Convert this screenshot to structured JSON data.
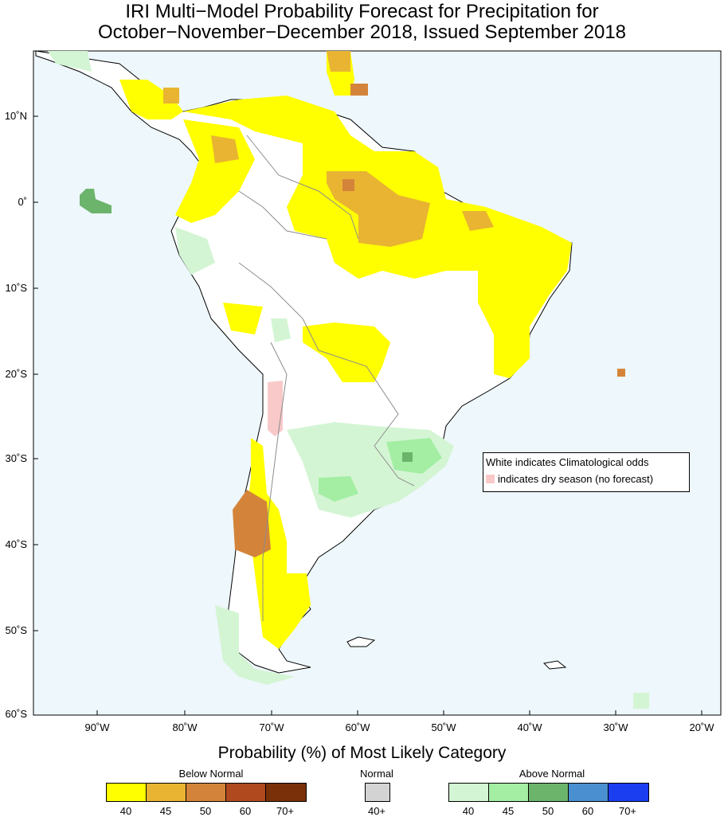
{
  "header": {
    "title_line1": "IRI Multi−Model Probability Forecast for Precipitation for",
    "title_line2": "October−November−December 2018, Issued September 2018"
  },
  "axes": {
    "lat_labels": [
      "10˚N",
      "0˚",
      "10˚S",
      "20˚S",
      "30˚S",
      "40˚S",
      "50˚S",
      "60˚S"
    ],
    "lon_labels": [
      "90˚W",
      "80˚W",
      "70˚W",
      "60˚W",
      "50˚W",
      "40˚W",
      "30˚W",
      "20˚W"
    ]
  },
  "legend_box": {
    "line1": "White indicates Climatological odds",
    "line2": "indicates dry season (no forecast)"
  },
  "scale": {
    "title": "Probability (%) of Most Likely Category",
    "below_label": "Below Normal",
    "normal_label": "Normal",
    "above_label": "Above Normal",
    "below_ticks": [
      "40",
      "45",
      "50",
      "60",
      "70+"
    ],
    "normal_ticks": [
      "40+"
    ],
    "above_ticks": [
      "40",
      "45",
      "50",
      "60",
      "70+"
    ]
  },
  "colors": {
    "ocean": "#eef7fb",
    "land": "#ffffff",
    "dry_season": "#f9c9c9",
    "below": [
      "#ffff00",
      "#e8b432",
      "#d4843a",
      "#b04a1e",
      "#7a3008"
    ],
    "normal": [
      "#d3d3d3"
    ],
    "above": [
      "#d4f5d4",
      "#a3eea3",
      "#6cb46c",
      "#4a90d0",
      "#1a3ef0"
    ]
  }
}
